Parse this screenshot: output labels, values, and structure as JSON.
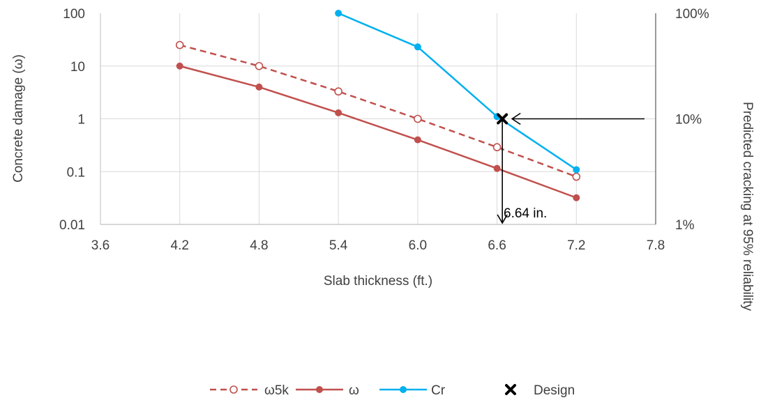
{
  "chart_data": {
    "type": "line",
    "xlabel": "Slab thickness  (ft.)",
    "ylabel": "Concrete damage (ω)",
    "y2label": "Predicted cracking at 95% reliability",
    "x_ticks": [
      "3.6",
      "4.2",
      "4.8",
      "5.4",
      "6.0",
      "6.6",
      "7.2",
      "7.8"
    ],
    "y_ticks": [
      "0.01",
      "0.1",
      "1",
      "10",
      "100"
    ],
    "y2_ticks": [
      "1%",
      "10%",
      "100%"
    ],
    "xlim": [
      3.6,
      7.8
    ],
    "ylim": [
      0.01,
      100
    ],
    "y_scale": "log",
    "y2lim": [
      1,
      100
    ],
    "y2_scale": "log",
    "grid": true,
    "legend_position": "bottom",
    "series": [
      {
        "name": "ω5k",
        "axis": "left",
        "color": "#C0504D",
        "dashed": true,
        "marker": "open-circle",
        "x": [
          4.2,
          4.8,
          5.4,
          6.0,
          6.6,
          7.2
        ],
        "y": [
          25,
          10,
          3.3,
          1.0,
          0.29,
          0.08
        ]
      },
      {
        "name": "ω",
        "axis": "left",
        "color": "#C0504D",
        "dashed": false,
        "marker": "filled-circle",
        "x": [
          4.2,
          4.8,
          5.4,
          6.0,
          6.6,
          7.2
        ],
        "y": [
          10,
          4.0,
          1.3,
          0.4,
          0.115,
          0.032
        ]
      },
      {
        "name": "Cr",
        "axis": "right",
        "color": "#00B0F0",
        "dashed": false,
        "marker": "filled-circle",
        "x": [
          5.4,
          6.0,
          6.6,
          7.2
        ],
        "y": [
          100,
          48,
          10.5,
          3.3
        ]
      },
      {
        "name": "Design",
        "axis": "right",
        "color": "#000000",
        "dashed": false,
        "marker": "x",
        "x": [
          6.64
        ],
        "y": [
          10
        ]
      }
    ],
    "annotation": {
      "text": "6.64 in.",
      "x": 6.64,
      "y_right": 10
    }
  }
}
